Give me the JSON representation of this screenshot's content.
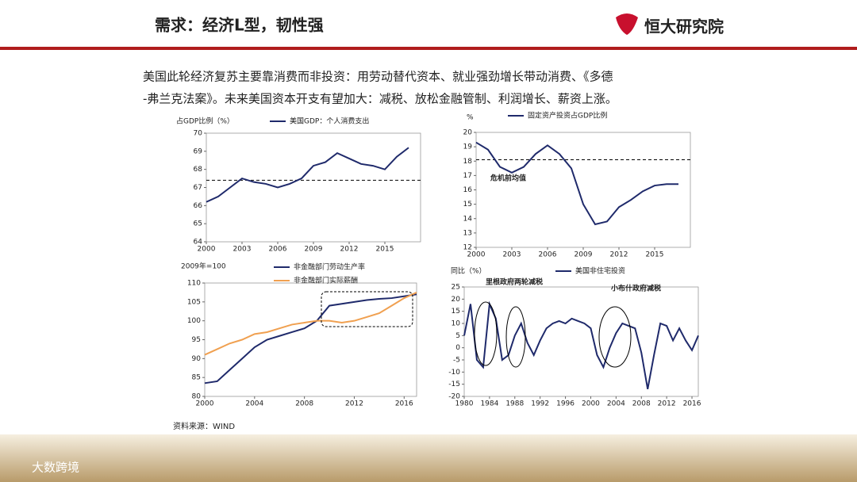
{
  "header": {
    "title": "需求：经济L型，韧性强",
    "logo": "恒大研究院"
  },
  "body": {
    "lines": [
      "美国此轮经济复苏主要靠消费而非投资：用劳动替代资本、就业强劲增长带动消费、《多德",
      "-弗兰克法案》。未来美国资本开支有望加大：减税、放松金融管制、利润增长、薪资上涨。"
    ]
  },
  "source": "资料来源：WIND",
  "watermark": "大数跨境",
  "chart_data": [
    {
      "type": "line",
      "y_label": "占GDP比例（%）",
      "x": [
        2000,
        2001,
        2002,
        2003,
        2004,
        2005,
        2006,
        2007,
        2008,
        2009,
        2010,
        2011,
        2012,
        2013,
        2014,
        2015,
        2016,
        2017
      ],
      "series": [
        {
          "name": "美国GDP：个人消费支出",
          "color": "#1f2a6b",
          "values": [
            66.2,
            66.5,
            67.0,
            67.5,
            67.3,
            67.2,
            67.0,
            67.2,
            67.5,
            68.2,
            68.4,
            68.9,
            68.6,
            68.3,
            68.2,
            68.0,
            68.7,
            69.2
          ]
        }
      ],
      "reference_line": 67.4,
      "xlim": [
        2000,
        2018
      ],
      "xticks": [
        2000,
        2003,
        2006,
        2009,
        2012,
        2015
      ],
      "ylim": [
        64,
        70
      ],
      "yticks": [
        64,
        65,
        66,
        67,
        68,
        69,
        70
      ]
    },
    {
      "type": "line",
      "y_label": "%",
      "x": [
        2000,
        2001,
        2002,
        2003,
        2004,
        2005,
        2006,
        2007,
        2008,
        2009,
        2010,
        2011,
        2012,
        2013,
        2014,
        2015,
        2016,
        2017
      ],
      "series": [
        {
          "name": "固定资产投资占GDP比例",
          "color": "#1f2a6b",
          "values": [
            19.3,
            18.8,
            17.6,
            17.2,
            17.6,
            18.5,
            19.1,
            18.5,
            17.5,
            15.0,
            13.6,
            13.8,
            14.8,
            15.3,
            15.9,
            16.3,
            16.4,
            16.4
          ]
        }
      ],
      "reference_line": 18.1,
      "annotations": [
        "危机前均值"
      ],
      "xlim": [
        2000,
        2018
      ],
      "xticks": [
        2000,
        2003,
        2006,
        2009,
        2012,
        2015
      ],
      "ylim": [
        12,
        20
      ],
      "yticks": [
        12,
        13,
        14,
        15,
        16,
        17,
        18,
        19,
        20
      ]
    },
    {
      "type": "line",
      "y_label": "2009年=100",
      "x": [
        2000,
        2001,
        2002,
        2003,
        2004,
        2005,
        2006,
        2007,
        2008,
        2009,
        2010,
        2011,
        2012,
        2013,
        2014,
        2015,
        2016,
        2017
      ],
      "series": [
        {
          "name": "非金融部门劳动生产率",
          "color": "#1f2a6b",
          "values": [
            83.5,
            84,
            87,
            90,
            93,
            95,
            96,
            97,
            98,
            100,
            104,
            104.5,
            105,
            105.5,
            105.8,
            106,
            106.5,
            107
          ]
        },
        {
          "name": "非金融部门实际薪酬",
          "color": "#f0a050",
          "values": [
            91,
            92.5,
            94,
            95,
            96.5,
            97,
            98,
            99,
            99.5,
            100,
            100,
            99.5,
            100,
            101,
            102,
            104,
            106,
            107.5
          ]
        }
      ],
      "xlim": [
        2000,
        2017
      ],
      "xticks": [
        2000,
        2004,
        2008,
        2012,
        2016
      ],
      "ylim": [
        80,
        110
      ],
      "yticks": [
        80,
        85,
        90,
        95,
        100,
        105,
        110
      ]
    },
    {
      "type": "line",
      "y_label": "同比（%）",
      "x": [
        1980,
        1981,
        1982,
        1983,
        1984,
        1985,
        1986,
        1987,
        1988,
        1989,
        1990,
        1991,
        1992,
        1993,
        1994,
        1995,
        1996,
        1997,
        1998,
        1999,
        2000,
        2001,
        2002,
        2003,
        2004,
        2005,
        2006,
        2007,
        2008,
        2009,
        2010,
        2011,
        2012,
        2013,
        2014,
        2015,
        2016,
        2017
      ],
      "series": [
        {
          "name": "美国非住宅投资",
          "color": "#1f2a6b",
          "values": [
            5,
            18,
            -5,
            -8,
            18,
            12,
            -5,
            -3,
            5,
            10,
            2,
            -3,
            3,
            8,
            10,
            11,
            10,
            12,
            11,
            10,
            8,
            -3,
            -8,
            0,
            6,
            10,
            9,
            8,
            -2,
            -17,
            -3,
            10,
            9,
            3,
            8,
            3,
            -1,
            5
          ]
        }
      ],
      "annotations": [
        "里根政府两轮减税",
        "小布什政府减税"
      ],
      "xlim": [
        1980,
        2017
      ],
      "xticks": [
        1980,
        1984,
        1988,
        1992,
        1996,
        2000,
        2004,
        2008,
        2012,
        2016
      ],
      "ylim": [
        -20,
        25
      ],
      "yticks": [
        -20,
        -15,
        -10,
        -5,
        0,
        5,
        10,
        15,
        20,
        25
      ]
    }
  ]
}
